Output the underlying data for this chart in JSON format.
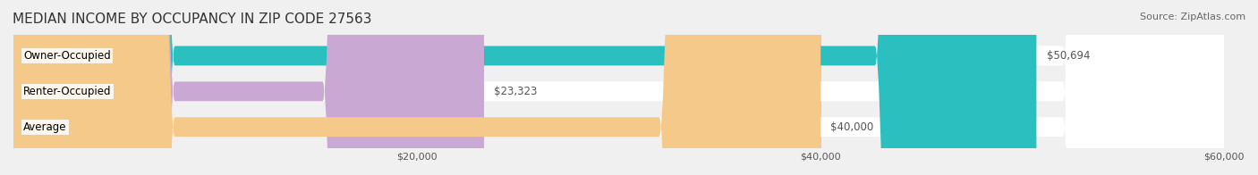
{
  "title": "MEDIAN INCOME BY OCCUPANCY IN ZIP CODE 27563",
  "source": "Source: ZipAtlas.com",
  "categories": [
    "Owner-Occupied",
    "Renter-Occupied",
    "Average"
  ],
  "values": [
    50694,
    23323,
    40000
  ],
  "bar_colors": [
    "#2bbfbf",
    "#c9a8d4",
    "#f5c98a"
  ],
  "bar_labels": [
    "$50,694",
    "$23,323",
    "$40,000"
  ],
  "xlim": [
    0,
    60000
  ],
  "xticks": [
    0,
    20000,
    40000,
    60000
  ],
  "xtick_labels": [
    "",
    "$20,000",
    "$40,000",
    "$60,000"
  ],
  "title_fontsize": 11,
  "source_fontsize": 8,
  "background_color": "#f0f0f0",
  "bar_bg_color": "#ffffff",
  "label_fontsize": 8.5,
  "value_fontsize": 8.5
}
